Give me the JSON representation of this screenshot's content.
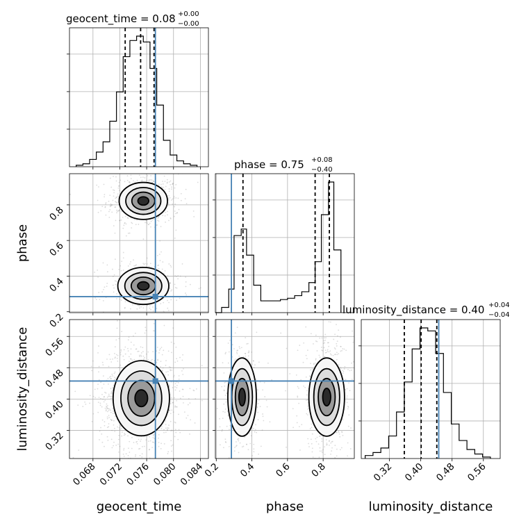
{
  "chart_data": {
    "type": "corner",
    "parameters": [
      "geocent_time",
      "phase",
      "luminosity_distance"
    ],
    "axis_labels": {
      "geocent_time": "geocent_time",
      "phase": "phase",
      "luminosity_distance": "luminosity_distance"
    },
    "titles": [
      {
        "param": "geocent_time",
        "text": "geocent_time = 0.08",
        "sup": "+0.00",
        "sub": "−0.00"
      },
      {
        "param": "phase",
        "text": "phase = 0.75",
        "sup": "+0.08",
        "sub": "−0.40"
      },
      {
        "param": "luminosity_distance",
        "text": "luminosity_distance = 0.40",
        "sup": "+0.04",
        "sub": "−0.04"
      }
    ],
    "ranges": {
      "geocent_time": [
        0.0645,
        0.0852
      ],
      "phase": [
        0.195,
        0.975
      ],
      "luminosity_distance": [
        0.248,
        0.603
      ]
    },
    "ticks": {
      "geocent_time": [
        "0.068",
        "0.072",
        "0.076",
        "0.080",
        "0.084"
      ],
      "phase": [
        "0.2",
        "0.4",
        "0.6",
        "0.8"
      ],
      "phase_y": [
        "0.2",
        "0.4",
        "0.6",
        "0.8"
      ],
      "luminosity_distance": [
        "0.32",
        "0.40",
        "0.48",
        "0.56"
      ]
    },
    "tick_values": {
      "geocent_time": [
        0.068,
        0.072,
        0.076,
        0.08,
        0.084
      ],
      "phase": [
        0.2,
        0.4,
        0.6,
        0.8
      ],
      "luminosity_distance": [
        0.32,
        0.4,
        0.48,
        0.56
      ]
    },
    "truths": {
      "geocent_time": 0.0773,
      "phase": 0.285,
      "luminosity_distance": 0.446
    },
    "quantiles": {
      "geocent_time": [
        0.0728,
        0.0751,
        0.0771
      ],
      "phase": [
        0.35,
        0.755,
        0.835
      ],
      "luminosity_distance": [
        0.358,
        0.401,
        0.441
      ]
    },
    "histograms": {
      "geocent_time": {
        "edges": [
          0.0655,
          0.0665,
          0.0675,
          0.0685,
          0.0695,
          0.0705,
          0.0715,
          0.0725,
          0.0735,
          0.0745,
          0.0755,
          0.0765,
          0.0775,
          0.0785,
          0.0795,
          0.0805,
          0.0815,
          0.0825,
          0.0835
        ],
        "counts": [
          1,
          2,
          5,
          10,
          17,
          31,
          51,
          75,
          86,
          89,
          85,
          67,
          42,
          18,
          8,
          4,
          2,
          1
        ]
      },
      "phase": {
        "edges": [
          0.195,
          0.23,
          0.27,
          0.3,
          0.34,
          0.37,
          0.41,
          0.45,
          0.49,
          0.52,
          0.56,
          0.6,
          0.64,
          0.68,
          0.72,
          0.755,
          0.79,
          0.83,
          0.86,
          0.9
        ],
        "counts": [
          0,
          4,
          18,
          59,
          64,
          44,
          21,
          9,
          9,
          9,
          10,
          11,
          13,
          16,
          23,
          39,
          75,
          100,
          48
        ]
      },
      "luminosity_distance": {
        "edges": [
          0.258,
          0.278,
          0.298,
          0.318,
          0.338,
          0.358,
          0.378,
          0.398,
          0.418,
          0.438,
          0.458,
          0.478,
          0.498,
          0.518,
          0.538,
          0.558,
          0.578
        ],
        "counts": [
          2,
          4,
          7,
          15,
          31,
          51,
          73,
          87,
          85,
          70,
          44,
          23,
          12,
          6,
          3,
          1
        ]
      }
    },
    "density_2d": [
      {
        "x": "geocent_time",
        "y": "phase",
        "clusters": [
          {
            "cx": 0.0755,
            "cy": 0.822,
            "sx": 0.0018,
            "sy": 0.052,
            "weight": 0.62
          },
          {
            "cx": 0.0755,
            "cy": 0.345,
            "sx": 0.0019,
            "sy": 0.052,
            "weight": 0.38
          }
        ]
      },
      {
        "x": "geocent_time",
        "y": "luminosity_distance",
        "clusters": [
          {
            "cx": 0.0752,
            "cy": 0.402,
            "sx": 0.0021,
            "sy": 0.048,
            "weight": 1.0
          }
        ]
      },
      {
        "x": "phase",
        "y": "luminosity_distance",
        "clusters": [
          {
            "cx": 0.345,
            "cy": 0.405,
            "sx": 0.04,
            "sy": 0.05,
            "weight": 0.4
          },
          {
            "cx": 0.82,
            "cy": 0.405,
            "sx": 0.05,
            "sy": 0.05,
            "weight": 0.6
          }
        ]
      }
    ],
    "grid": true
  }
}
